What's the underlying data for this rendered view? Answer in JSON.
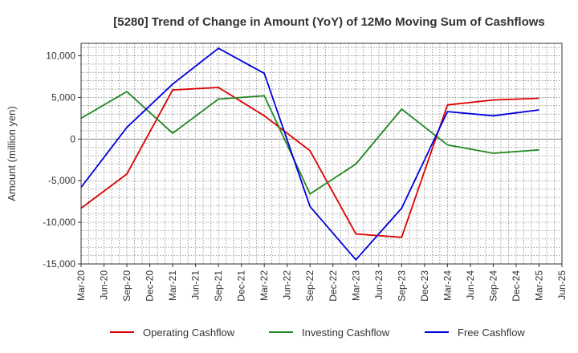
{
  "chart_data": {
    "type": "line",
    "title": "[5280]  Trend of Change in Amount (YoY) of 12Mo Moving Sum of Cashflows",
    "xlabel": "",
    "ylabel": "Amount (million yen)",
    "ylim": [
      -15000,
      11500
    ],
    "yticks": [
      10000,
      5000,
      0,
      -5000,
      -10000,
      -15000
    ],
    "ytick_labels": [
      "10,000",
      "5,000",
      "0",
      "-5,000",
      "-10,000",
      "-15,000"
    ],
    "xtick_labels": [
      "Mar-20",
      "Jun-20",
      "Sep-20",
      "Dec-20",
      "Mar-21",
      "Jun-21",
      "Sep-21",
      "Dec-21",
      "Mar-22",
      "Jun-22",
      "Sep-22",
      "Dec-22",
      "Mar-23",
      "Jun-23",
      "Sep-23",
      "Dec-23",
      "Mar-24",
      "Jun-24",
      "Sep-24",
      "Dec-24",
      "Mar-25",
      "Jun-25"
    ],
    "grid": true,
    "legend_position": "bottom-center",
    "series": [
      {
        "name": "Operating Cashflow",
        "color": "#dd0000",
        "x_index": [
          0,
          2,
          4,
          6,
          8,
          10,
          12,
          14,
          16,
          18,
          20
        ],
        "values": [
          -8300,
          -4200,
          5900,
          6200,
          2800,
          -1400,
          -11400,
          -11800,
          4100,
          4700,
          4900
        ]
      },
      {
        "name": "Investing Cashflow",
        "color": "#228822",
        "x_index": [
          0,
          2,
          4,
          6,
          8,
          10,
          12,
          14,
          16,
          18,
          20
        ],
        "values": [
          2500,
          5700,
          700,
          4800,
          5200,
          -6600,
          -3000,
          3600,
          -700,
          -1700,
          -1300
        ]
      },
      {
        "name": "Free Cashflow",
        "color": "#0000dd",
        "x_index": [
          0,
          2,
          4,
          6,
          8,
          10,
          12,
          14,
          16,
          18,
          20
        ],
        "values": [
          -5800,
          1400,
          6600,
          10900,
          7900,
          -8100,
          -14500,
          -8300,
          3300,
          2800,
          3500
        ]
      }
    ]
  }
}
